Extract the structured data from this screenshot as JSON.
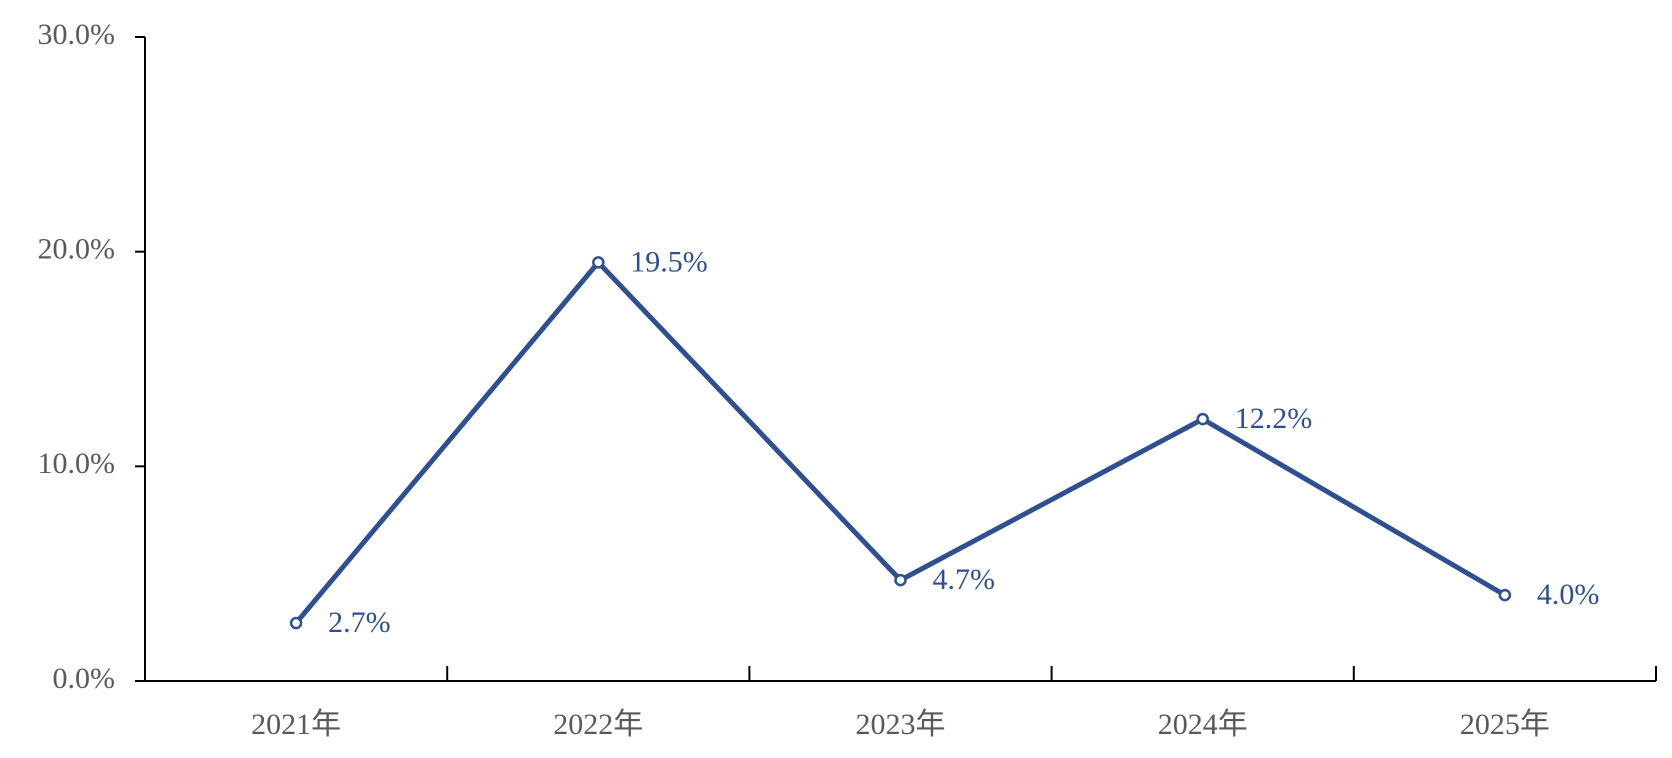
{
  "chart_data": {
    "type": "line",
    "categories": [
      "2021年",
      "2022年",
      "2023年",
      "2024年",
      "2025年"
    ],
    "values": [
      2.7,
      19.5,
      4.7,
      12.2,
      4.0
    ],
    "value_labels": [
      "2.7%",
      "19.5%",
      "4.7%",
      "12.2%",
      "4.0%"
    ],
    "color": "#2f5090",
    "ylim": [
      0,
      30
    ],
    "yticks": [
      {
        "value": 0,
        "label": "0.0%"
      },
      {
        "value": 10,
        "label": "10.0%"
      },
      {
        "value": 20,
        "label": "20.0%"
      },
      {
        "value": 30,
        "label": "30.0%"
      }
    ]
  }
}
